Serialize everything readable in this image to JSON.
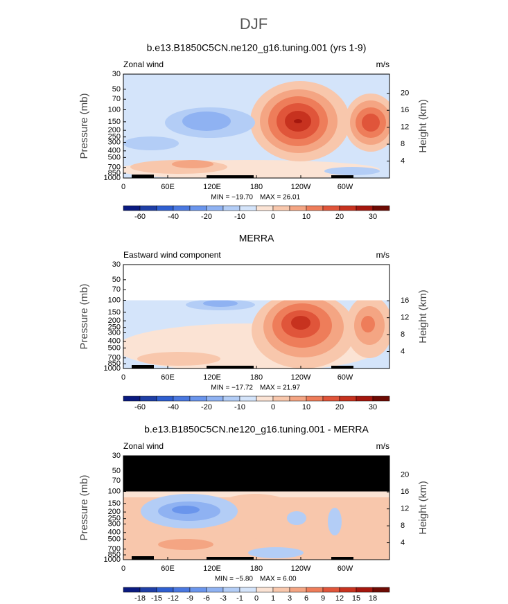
{
  "title": "DJF",
  "chart_data": [
    {
      "type": "contour",
      "title": "b.e13.B1850C5CN.ne120_g16.tuning.001 (yrs 1-9)",
      "left_label": "Zonal wind",
      "right_label": "m/s",
      "ylabel": "Pressure (mb)",
      "y2label": "Height (km)",
      "ylim": [
        1000,
        30
      ],
      "log_y": true,
      "yticks": [
        30,
        50,
        70,
        100,
        150,
        200,
        250,
        300,
        400,
        500,
        700,
        850,
        1000
      ],
      "y2ticks": [
        4,
        8,
        12,
        16,
        20
      ],
      "xlim": [
        0,
        360
      ],
      "xticks": [
        0,
        {
          "value": 60,
          "label": "60E"
        },
        {
          "value": 120,
          "label": "120E"
        },
        180,
        {
          "value": 240,
          "label": "120W"
        },
        {
          "value": 300,
          "label": "60W"
        }
      ],
      "min_label": "MIN = −19.70",
      "max_label": "MAX =  26.01",
      "levels": [
        -60,
        -50,
        -40,
        -30,
        -20,
        -15,
        -10,
        -5,
        0,
        5,
        10,
        15,
        20,
        25,
        30
      ],
      "colorbar_ticks": [
        -60,
        -40,
        -20,
        -10,
        0,
        10,
        20,
        30
      ]
    },
    {
      "type": "contour",
      "title": "MERRA",
      "left_label": "Eastward wind component",
      "right_label": "m/s",
      "ylabel": "Pressure (mb)",
      "y2label": "Height (km)",
      "ylim": [
        1000,
        30
      ],
      "log_y": true,
      "yticks": [
        30,
        50,
        70,
        100,
        150,
        200,
        250,
        300,
        400,
        500,
        700,
        850,
        1000
      ],
      "y2ticks": [
        4,
        8,
        12,
        16
      ],
      "xlim": [
        0,
        360
      ],
      "xticks": [
        0,
        {
          "value": 60,
          "label": "60E"
        },
        {
          "value": 120,
          "label": "120E"
        },
        180,
        {
          "value": 240,
          "label": "120W"
        },
        {
          "value": 300,
          "label": "60W"
        }
      ],
      "min_label": "MIN = −17.72",
      "max_label": "MAX =  21.97",
      "levels": [
        -60,
        -50,
        -40,
        -30,
        -20,
        -15,
        -10,
        -5,
        0,
        5,
        10,
        15,
        20,
        25,
        30
      ],
      "colorbar_ticks": [
        -60,
        -40,
        -20,
        -10,
        0,
        10,
        20,
        30
      ]
    },
    {
      "type": "contour",
      "title": "b.e13.B1850C5CN.ne120_g16.tuning.001 - MERRA",
      "left_label": "Zonal wind",
      "right_label": "m/s",
      "ylabel": "Pressure (mb)",
      "y2label": "Height (km)",
      "ylim": [
        1000,
        30
      ],
      "log_y": true,
      "yticks": [
        30,
        50,
        70,
        100,
        150,
        200,
        250,
        300,
        400,
        500,
        700,
        850,
        1000
      ],
      "y2ticks": [
        4,
        8,
        12,
        16,
        20
      ],
      "xlim": [
        0,
        360
      ],
      "xticks": [
        0,
        {
          "value": 60,
          "label": "60E"
        },
        {
          "value": 120,
          "label": "120E"
        },
        180,
        {
          "value": 240,
          "label": "120W"
        },
        {
          "value": 300,
          "label": "60W"
        }
      ],
      "min_label": "MIN = −5.80",
      "max_label": "MAX =  6.00",
      "levels": [
        -18,
        -15,
        -12,
        -9,
        -6,
        -3,
        -1,
        0,
        1,
        3,
        6,
        9,
        12,
        15,
        18
      ],
      "colorbar_ticks": [
        -18,
        -15,
        -12,
        -9,
        -6,
        -3,
        -1,
        0,
        1,
        3,
        6,
        9,
        12,
        15,
        18
      ]
    }
  ]
}
